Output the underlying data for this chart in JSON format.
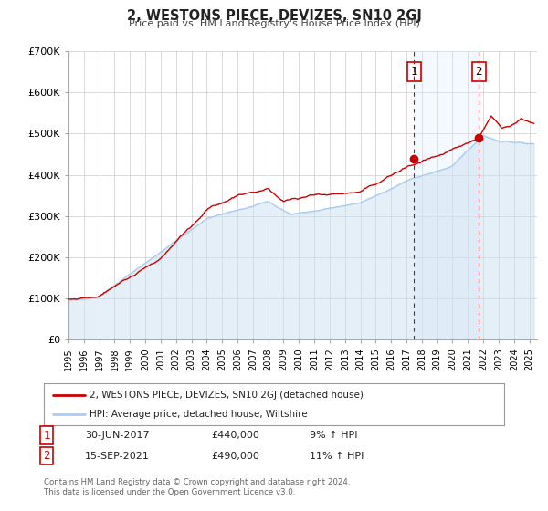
{
  "title": "2, WESTONS PIECE, DEVIZES, SN10 2GJ",
  "subtitle": "Price paid vs. HM Land Registry's House Price Index (HPI)",
  "ylim": [
    0,
    700000
  ],
  "yticks": [
    0,
    100000,
    200000,
    300000,
    400000,
    500000,
    600000,
    700000
  ],
  "ytick_labels": [
    "£0",
    "£100K",
    "£200K",
    "£300K",
    "£400K",
    "£500K",
    "£600K",
    "£700K"
  ],
  "xlim_start": 1995.0,
  "xlim_end": 2025.5,
  "xtick_years": [
    1995,
    1996,
    1997,
    1998,
    1999,
    2000,
    2001,
    2002,
    2003,
    2004,
    2005,
    2006,
    2007,
    2008,
    2009,
    2010,
    2011,
    2012,
    2013,
    2014,
    2015,
    2016,
    2017,
    2018,
    2019,
    2020,
    2021,
    2022,
    2023,
    2024,
    2025
  ],
  "line1_color": "#cc0000",
  "line2_color": "#aaccee",
  "fill2_color": "#cce0f0",
  "marker_color": "#cc0000",
  "event1_x": 2017.5,
  "event1_y": 440000,
  "event2_x": 2021.71,
  "event2_y": 490000,
  "event1_label": "1",
  "event2_label": "2",
  "vline_color": "#cc0000",
  "shade_color": "#ddeeff",
  "legend_line1": "2, WESTONS PIECE, DEVIZES, SN10 2GJ (detached house)",
  "legend_line2": "HPI: Average price, detached house, Wiltshire",
  "note1_label": "1",
  "note1_date": "30-JUN-2017",
  "note1_price": "£440,000",
  "note1_hpi": "9% ↑ HPI",
  "note2_label": "2",
  "note2_date": "15-SEP-2021",
  "note2_price": "£490,000",
  "note2_hpi": "11% ↑ HPI",
  "footer": "Contains HM Land Registry data © Crown copyright and database right 2024.\nThis data is licensed under the Open Government Licence v3.0.",
  "background_color": "#ffffff",
  "grid_color": "#cccccc"
}
